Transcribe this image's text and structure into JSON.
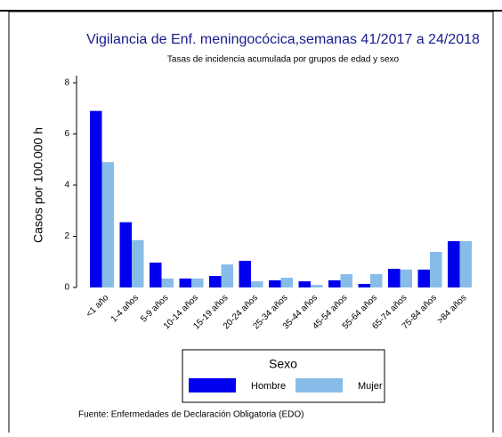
{
  "chart_data": {
    "type": "bar",
    "title": "Vigilancia de Enf. meningocócica,semanas 41/2017 a 24/2018",
    "subtitle": "Tasas de incidencia acumulada por grupos de edad y sexo",
    "y_label": "Casos por 100.000 h",
    "legend_title": "Sexo",
    "source": "Fuente: Enfermedades de Declaración Obligatoria (EDO)",
    "categories": [
      "<1 año",
      "1-4 años",
      "5-9 años",
      "10-14 años",
      "15-19 años",
      "20-24 años",
      "25-34 años",
      "35-44 años",
      "45-54 años",
      "55-64 años",
      "65-74 años",
      "75-84 años",
      ">84 años"
    ],
    "series": [
      {
        "name": "Hombre",
        "color": "#0000ee",
        "values": [
          6.9,
          2.55,
          0.97,
          0.35,
          0.45,
          1.04,
          0.28,
          0.24,
          0.28,
          0.14,
          0.73,
          0.7,
          1.81
        ]
      },
      {
        "name": "Mujer",
        "color": "#87bce8",
        "values": [
          4.9,
          1.85,
          0.35,
          0.35,
          0.9,
          0.24,
          0.38,
          0.1,
          0.52,
          0.52,
          0.7,
          1.39,
          1.81
        ]
      }
    ],
    "ylim": [
      0,
      8
    ],
    "yticks": [
      0,
      2,
      4,
      6,
      8
    ]
  }
}
